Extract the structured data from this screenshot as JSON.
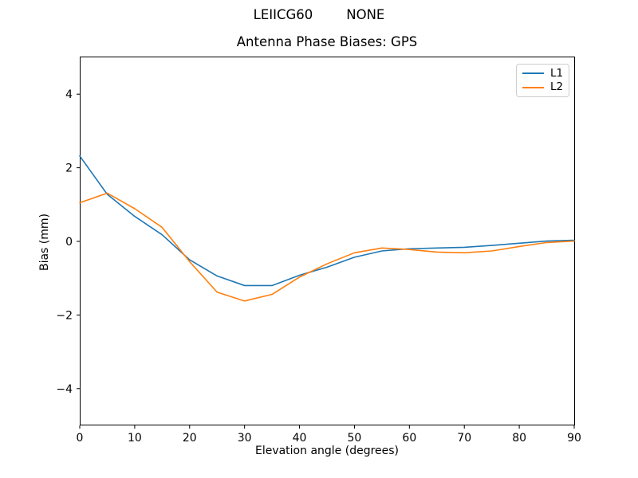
{
  "figure": {
    "suptitle": "LEIICG60        NONE",
    "title": "Antenna Phase Biases: GPS"
  },
  "chart_data": {
    "type": "line",
    "suptitle": "LEIICG60        NONE",
    "title": "Antenna Phase Biases: GPS",
    "xlabel": "Elevation angle (degrees)",
    "ylabel": "Bias (mm)",
    "xlim": [
      0,
      90
    ],
    "ylim": [
      -5,
      5
    ],
    "xticks": [
      0,
      10,
      20,
      30,
      40,
      50,
      60,
      70,
      80,
      90
    ],
    "yticks": [
      -4,
      -2,
      0,
      2,
      4
    ],
    "grid": false,
    "background": "#ffffff",
    "axes_color": "#000000",
    "legend": {
      "position": "upper right",
      "entries": [
        "L1",
        "L2"
      ]
    },
    "x": [
      0,
      5,
      10,
      15,
      20,
      25,
      30,
      35,
      40,
      45,
      50,
      55,
      60,
      65,
      70,
      75,
      80,
      85,
      90
    ],
    "series": [
      {
        "name": "L1",
        "color": "#1f77b4",
        "values": [
          2.32,
          1.28,
          0.68,
          0.18,
          -0.5,
          -0.94,
          -1.2,
          -1.2,
          -0.92,
          -0.7,
          -0.43,
          -0.26,
          -0.2,
          -0.18,
          -0.16,
          -0.11,
          -0.05,
          0.01,
          0.03
        ]
      },
      {
        "name": "L2",
        "color": "#ff7f0e",
        "values": [
          1.05,
          1.31,
          0.89,
          0.38,
          -0.55,
          -1.38,
          -1.62,
          -1.44,
          -0.97,
          -0.61,
          -0.31,
          -0.18,
          -0.22,
          -0.29,
          -0.31,
          -0.26,
          -0.14,
          -0.03,
          0.01
        ]
      }
    ]
  }
}
